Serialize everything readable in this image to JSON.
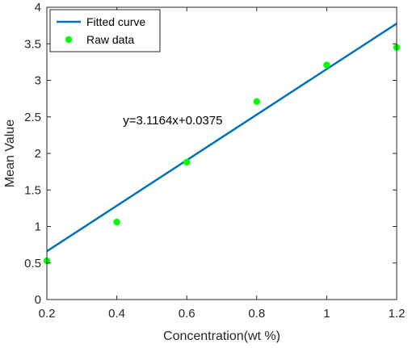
{
  "chart_data": {
    "type": "scatter",
    "title": "",
    "xlabel": "Concentration(wt %)",
    "ylabel": "Mean Value",
    "xlim": [
      0.2,
      1.2
    ],
    "ylim": [
      0,
      4
    ],
    "xticks": [
      0.2,
      0.4,
      0.6,
      0.8,
      1.0,
      1.2
    ],
    "xtick_labels": [
      "0.2",
      "0.4",
      "0.6",
      "0.8",
      "1",
      "1.2"
    ],
    "yticks": [
      0,
      0.5,
      1,
      1.5,
      2,
      2.5,
      3,
      3.5,
      4
    ],
    "ytick_labels": [
      "0",
      "0.5",
      "1",
      "1.5",
      "2",
      "2.5",
      "3",
      "3.5",
      "4"
    ],
    "grid": false,
    "legend_position": "top-left",
    "series": [
      {
        "name": "Fitted curve",
        "kind": "line",
        "color": "#0072BD",
        "x": [
          0.2,
          1.2
        ],
        "y": [
          0.6608,
          3.7772
        ]
      },
      {
        "name": "Raw data",
        "kind": "scatter",
        "color": "#00FF00",
        "x": [
          0.2,
          0.4,
          0.6,
          0.8,
          1.0,
          1.2
        ],
        "y": [
          0.53,
          1.06,
          1.88,
          2.71,
          3.21,
          3.45
        ]
      }
    ],
    "annotations": [
      {
        "text": "y=3.1164x+0.0375",
        "x": 0.56,
        "y": 2.4
      }
    ]
  }
}
